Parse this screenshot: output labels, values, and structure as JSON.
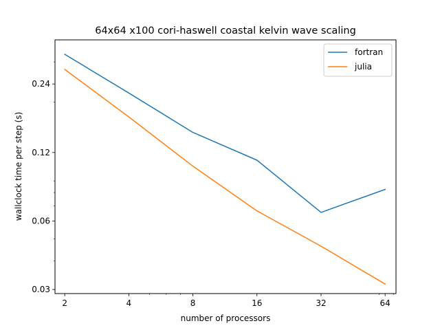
{
  "chart_data": {
    "type": "line",
    "title": "64x64 x100 cori-haswell coastal kelvin wave scaling",
    "xlabel": "number of processors",
    "ylabel": "wallclock time per step (s)",
    "x_scale": "log2",
    "y_scale": "log",
    "x": [
      2,
      4,
      8,
      16,
      32,
      64
    ],
    "xticks": [
      2,
      4,
      8,
      16,
      32,
      64
    ],
    "xtick_labels": [
      "2",
      "4",
      "8",
      "16",
      "32",
      "64"
    ],
    "yticks": [
      0.03,
      0.06,
      0.12,
      0.24
    ],
    "ytick_labels": [
      "0.03",
      "0.06",
      "0.12",
      "0.24"
    ],
    "xlim": [
      1.8,
      72
    ],
    "ylim": [
      0.0288,
      0.375
    ],
    "grid": false,
    "legend_position": "top-right",
    "series": [
      {
        "name": "fortran",
        "color": "#1f77b4",
        "values": [
          0.324,
          0.219,
          0.147,
          0.111,
          0.0655,
          0.0826
        ]
      },
      {
        "name": "julia",
        "color": "#ff7f0e",
        "values": [
          0.278,
          0.172,
          0.1045,
          0.0665,
          0.0465,
          0.0317
        ]
      }
    ]
  }
}
